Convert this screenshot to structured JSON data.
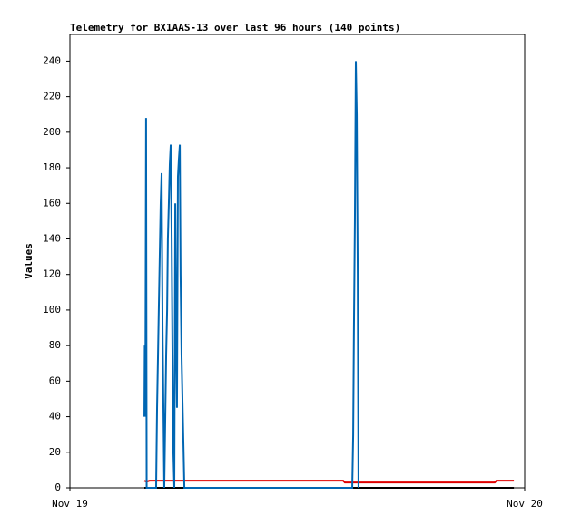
{
  "chart_data": {
    "type": "line",
    "title": "Telemetry for BX1AAS-13 over last 96 hours (140 points)",
    "y_label": "Values",
    "xlim": [
      0,
      24
    ],
    "ylim": [
      0,
      255
    ],
    "xticks": [
      {
        "value": 0,
        "label": "Nov 19"
      },
      {
        "value": 24,
        "label": "Nov 20"
      }
    ],
    "yticks": [
      0,
      20,
      40,
      60,
      80,
      100,
      120,
      140,
      160,
      180,
      200,
      220,
      240
    ],
    "series": [
      {
        "color": "#0066b3",
        "x": [
          3.93,
          3.95,
          3.98,
          4.02,
          4.05,
          4.55,
          4.6,
          4.65,
          4.69,
          4.74,
          4.79,
          4.84,
          4.89,
          4.93,
          4.98,
          5.08,
          5.13,
          5.17,
          5.22,
          5.27,
          5.32,
          5.37,
          5.41,
          5.46,
          5.51,
          5.56,
          5.6,
          5.65,
          5.7,
          5.75,
          5.8,
          5.84,
          5.89,
          5.94,
          5.99,
          6.04,
          14.9,
          14.95,
          14.99,
          15.04,
          15.09,
          15.14,
          15.19,
          15.23
        ],
        "values": [
          40,
          80,
          40,
          208,
          0,
          0,
          45,
          75,
          100,
          130,
          160,
          177,
          90,
          50,
          0,
          75,
          100,
          140,
          160,
          182,
          193,
          140,
          80,
          20,
          0,
          160,
          90,
          45,
          175,
          185,
          193,
          120,
          75,
          50,
          25,
          0,
          0,
          30,
          90,
          150,
          240,
          210,
          120,
          0
        ]
      },
      {
        "color": "#e00000",
        "x": [
          3.93,
          4.05,
          4.2,
          14.42,
          14.51,
          22.42,
          22.51,
          23.43
        ],
        "values": [
          4,
          3.5,
          4,
          4,
          3,
          3,
          4,
          4
        ]
      },
      {
        "color": "#000000",
        "x": [
          3.93,
          23.43
        ],
        "values": [
          0,
          0
        ]
      }
    ]
  }
}
